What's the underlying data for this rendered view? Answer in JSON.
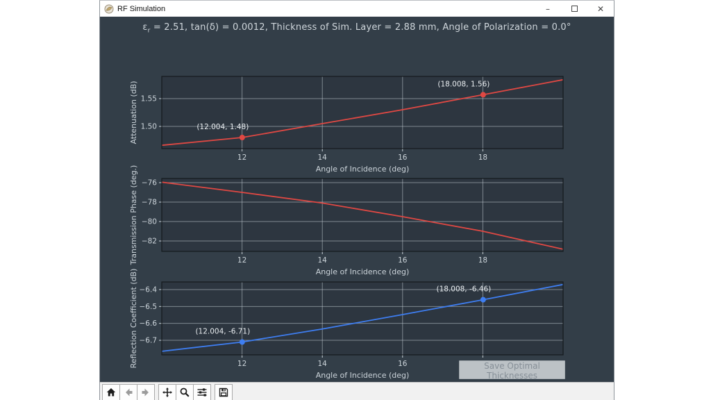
{
  "window": {
    "title": "RF Simulation",
    "controls": {
      "minimize": "–",
      "close": "✕"
    }
  },
  "header": {
    "title_prefix": "ε",
    "title_sub": "r",
    "title_rest": " = 2.51, tan(δ) = 0.0012, Thickness of Sim. Layer = 2.88 mm, Angle of Polarization = 0.0°"
  },
  "colors": {
    "figure_bg": "#333e48",
    "axes_bg": "#2d3640",
    "axes_border": "#15191d",
    "grid": "#c2ccd3",
    "tick_text": "#ccd4da",
    "label_text": "#ccd4da",
    "annotation_text": "#e9edf0",
    "red_series": "#e04843",
    "blue_series": "#3e7ef2"
  },
  "chart_data": [
    {
      "type": "line",
      "title": "",
      "xlabel": "Angle of Incidence (deg)",
      "ylabel": "Attenuation (dB)",
      "xlim": [
        10,
        20
      ],
      "ylim": [
        1.46,
        1.59
      ],
      "grid": true,
      "xticks": [
        12,
        14,
        16,
        18
      ],
      "xtick_labels": [
        "12",
        "14",
        "16",
        "18"
      ],
      "yticks": [
        1.5,
        1.55
      ],
      "ytick_labels": [
        "1.50",
        "1.55"
      ],
      "series": [
        {
          "name": "Attenuation",
          "color": "#e04843",
          "x": [
            10,
            12.004,
            14,
            16,
            18.008,
            20
          ],
          "y": [
            1.466,
            1.48,
            1.505,
            1.53,
            1.557,
            1.584
          ]
        }
      ],
      "annotations": [
        {
          "x": 12.004,
          "y": 1.48,
          "label": "(12.004, 1.48)"
        },
        {
          "x": 18.008,
          "y": 1.557,
          "label": "(18.008, 1.56)"
        }
      ]
    },
    {
      "type": "line",
      "title": "",
      "xlabel": "Angle of Incidence (deg)",
      "ylabel": "Transmission Phase (deg.)",
      "xlim": [
        10,
        20
      ],
      "ylim": [
        -83.07,
        -75.57
      ],
      "grid": true,
      "xticks": [
        12,
        14,
        16,
        18
      ],
      "xtick_labels": [
        "12",
        "14",
        "16",
        "18"
      ],
      "yticks": [
        -76,
        -78,
        -80,
        -82
      ],
      "ytick_labels": [
        "−76",
        "−78",
        "−80",
        "−82"
      ],
      "series": [
        {
          "name": "Transmission Phase",
          "color": "#e04843",
          "x": [
            10,
            12,
            14,
            16,
            18,
            20
          ],
          "y": [
            -75.95,
            -77.0,
            -78.1,
            -79.5,
            -81.0,
            -82.85
          ]
        }
      ],
      "annotations": []
    },
    {
      "type": "line",
      "title": "",
      "xlabel": "Angle of Incidence (deg)",
      "ylabel": "Reflection Coefficient (dB)",
      "xlim": [
        10,
        20
      ],
      "ylim": [
        -6.786,
        -6.355
      ],
      "grid": true,
      "xticks": [
        12,
        14,
        16,
        18
      ],
      "xtick_labels": [
        "12",
        "14",
        "16",
        "18"
      ],
      "yticks": [
        -6.4,
        -6.5,
        -6.6,
        -6.7
      ],
      "ytick_labels": [
        "−6.4",
        "−6.5",
        "−6.6",
        "−6.7"
      ],
      "series": [
        {
          "name": "Reflection Coefficient",
          "color": "#3e7ef2",
          "x": [
            10,
            12.004,
            14,
            16,
            18.008,
            20
          ],
          "y": [
            -6.765,
            -6.71,
            -6.633,
            -6.548,
            -6.46,
            -6.37
          ]
        }
      ],
      "annotations": [
        {
          "x": 12.004,
          "y": -6.71,
          "label": "(12.004, -6.71)"
        },
        {
          "x": 18.008,
          "y": -6.46,
          "label": "(18.008, -6.46)"
        }
      ]
    }
  ],
  "save_button": {
    "label": "Save Optimal Thicknesses",
    "enabled": false
  },
  "toolbar": {
    "buttons": [
      {
        "name": "home"
      },
      {
        "name": "back"
      },
      {
        "name": "forward"
      },
      {
        "name": "pan"
      },
      {
        "name": "zoom"
      },
      {
        "name": "configure-subplots"
      },
      {
        "name": "save-figure"
      }
    ]
  }
}
